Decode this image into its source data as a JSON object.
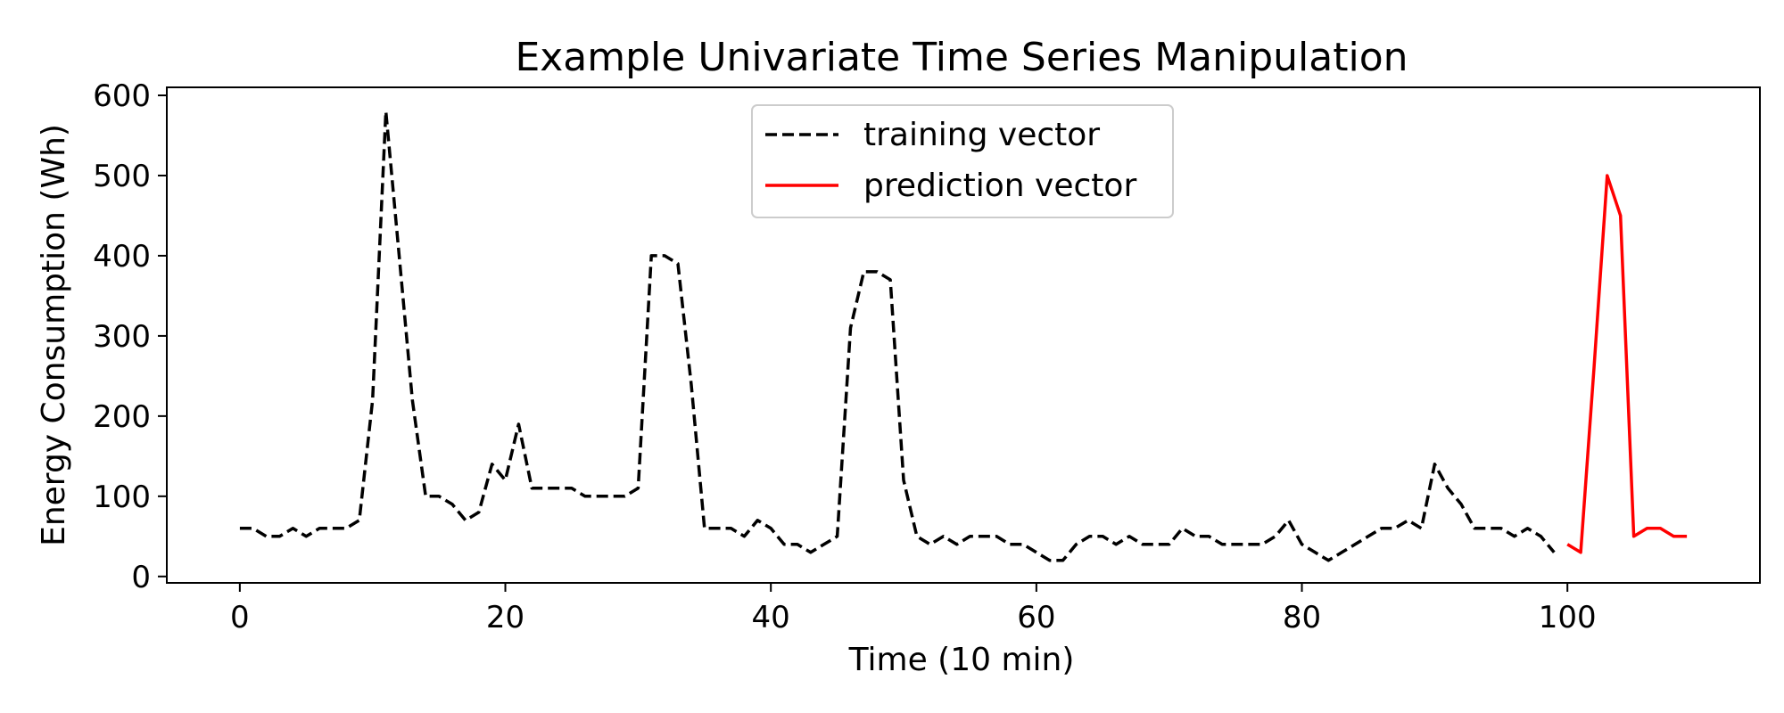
{
  "chart_data": {
    "type": "line",
    "title": "Example Univariate Time Series Manipulation",
    "xlabel": "Time (10 min)",
    "ylabel": "Energy Consumption (Wh)",
    "xlim": [
      -5.5,
      114.5
    ],
    "ylim": [
      -8,
      610
    ],
    "xticks": [
      0,
      20,
      40,
      60,
      80,
      100
    ],
    "yticks": [
      0,
      100,
      200,
      300,
      400,
      500,
      600
    ],
    "grid": false,
    "legend": {
      "placement": "top-center"
    },
    "series": [
      {
        "name": "training vector",
        "color": "#000000",
        "style": "dashed",
        "x": [
          0,
          1,
          2,
          3,
          4,
          5,
          6,
          7,
          8,
          9,
          10,
          11,
          12,
          13,
          14,
          15,
          16,
          17,
          18,
          19,
          20,
          21,
          22,
          23,
          24,
          25,
          26,
          27,
          28,
          29,
          30,
          31,
          32,
          33,
          34,
          35,
          36,
          37,
          38,
          39,
          40,
          41,
          42,
          43,
          44,
          45,
          46,
          47,
          48,
          49,
          50,
          51,
          52,
          53,
          54,
          55,
          56,
          57,
          58,
          59,
          60,
          61,
          62,
          63,
          64,
          65,
          66,
          67,
          68,
          69,
          70,
          71,
          72,
          73,
          74,
          75,
          76,
          77,
          78,
          79,
          80,
          81,
          82,
          83,
          84,
          85,
          86,
          87,
          88,
          89,
          90,
          91,
          92,
          93,
          94,
          95,
          96,
          97,
          98,
          99
        ],
        "values": [
          60,
          60,
          50,
          50,
          60,
          50,
          60,
          60,
          60,
          70,
          220,
          580,
          400,
          220,
          100,
          100,
          90,
          70,
          80,
          140,
          120,
          190,
          110,
          110,
          110,
          110,
          100,
          100,
          100,
          100,
          110,
          400,
          400,
          390,
          240,
          60,
          60,
          60,
          50,
          70,
          60,
          40,
          40,
          30,
          40,
          50,
          310,
          380,
          380,
          370,
          120,
          50,
          40,
          50,
          40,
          50,
          50,
          50,
          40,
          40,
          30,
          20,
          20,
          40,
          50,
          50,
          40,
          50,
          40,
          40,
          40,
          60,
          50,
          50,
          40,
          40,
          40,
          40,
          50,
          70,
          40,
          30,
          20,
          30,
          40,
          50,
          60,
          60,
          70,
          60,
          140,
          110,
          90,
          60,
          60,
          60,
          50,
          60,
          50,
          30
        ]
      },
      {
        "name": "prediction vector",
        "color": "#ff0000",
        "style": "solid",
        "x": [
          100,
          101,
          102,
          103,
          104,
          105,
          106,
          107,
          108,
          109
        ],
        "values": [
          40,
          30,
          260,
          500,
          450,
          50,
          60,
          60,
          50,
          50
        ]
      }
    ]
  }
}
